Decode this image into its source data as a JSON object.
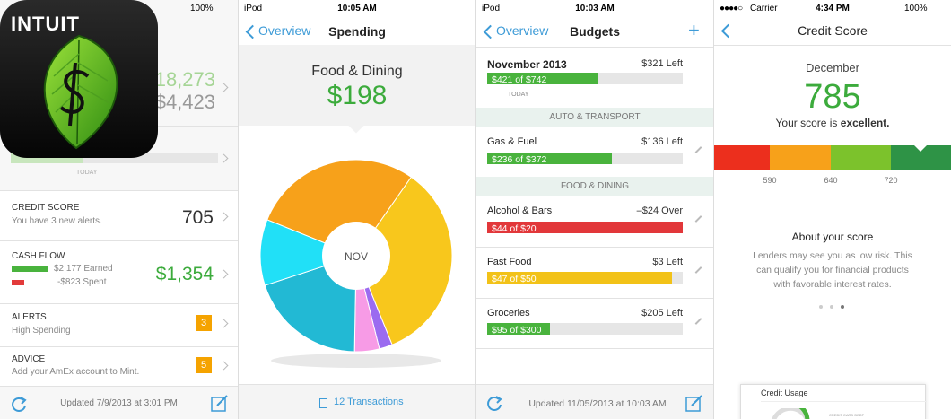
{
  "app_icon": {
    "brand": "INTUIT"
  },
  "overview": {
    "battery": "100%",
    "net_worth": "18,273",
    "debt": "$4,423",
    "today": "TODAY",
    "credit_score": {
      "title": "CREDIT SCORE",
      "subtitle": "You have 3 new alerts.",
      "value": 705
    },
    "cash_flow": {
      "title": "CASH FLOW",
      "earned": "$2,177 Earned",
      "spent": "-$823 Spent",
      "value": "$1,354"
    },
    "alerts": {
      "title": "ALERTS",
      "subtitle": "High Spending",
      "badge": 3
    },
    "advice": {
      "title": "ADVICE",
      "subtitle": "Add your AmEx account to Mint.",
      "badge": 5
    },
    "footer": "Updated 7/9/2013 at 3:01 PM"
  },
  "spending": {
    "carrier": "iPod",
    "time": "10:05 AM",
    "back": "Overview",
    "title": "Spending",
    "category": "Food & Dining",
    "amount": "$198",
    "center_label": "NOV",
    "transactions": "12 Transactions"
  },
  "budgets": {
    "carrier": "iPod",
    "time": "10:03 AM",
    "back": "Overview",
    "title": "Budgets",
    "add": "+",
    "month": {
      "name": "November 2013",
      "status": "$321 Left",
      "bar": "$421 of $742",
      "today": "TODAY"
    },
    "sections": [
      "AUTO & TRANSPORT",
      "FOOD & DINING"
    ],
    "rows": [
      {
        "name": "Gas & Fuel",
        "status": "$136 Left",
        "bar": "$236 of $372"
      },
      {
        "name": "Alcohol & Bars",
        "status": "–$24 Over",
        "bar": "$44 of $20"
      },
      {
        "name": "Fast Food",
        "status": "$3 Left",
        "bar": "$47 of $50"
      },
      {
        "name": "Groceries",
        "status": "$205 Left",
        "bar": "$95 of $300"
      }
    ],
    "footer": "Updated 11/05/2013 at 10:03 AM"
  },
  "credit": {
    "carrier": "Carrier",
    "time": "4:34 PM",
    "battery": "100%",
    "title": "Credit Score",
    "month": "December",
    "score": 785,
    "rating_prefix": "Your score is",
    "rating": "excellent.",
    "scale_labels": [
      590,
      640,
      720
    ],
    "about_title": "About your score",
    "about_lines": [
      "Lenders may see you as low risk. This",
      "can qualify you for financial products",
      "with favorable interest rates."
    ],
    "card_title": "Credit Usage",
    "card_caption": "CREDIT CARD DEBT"
  }
}
